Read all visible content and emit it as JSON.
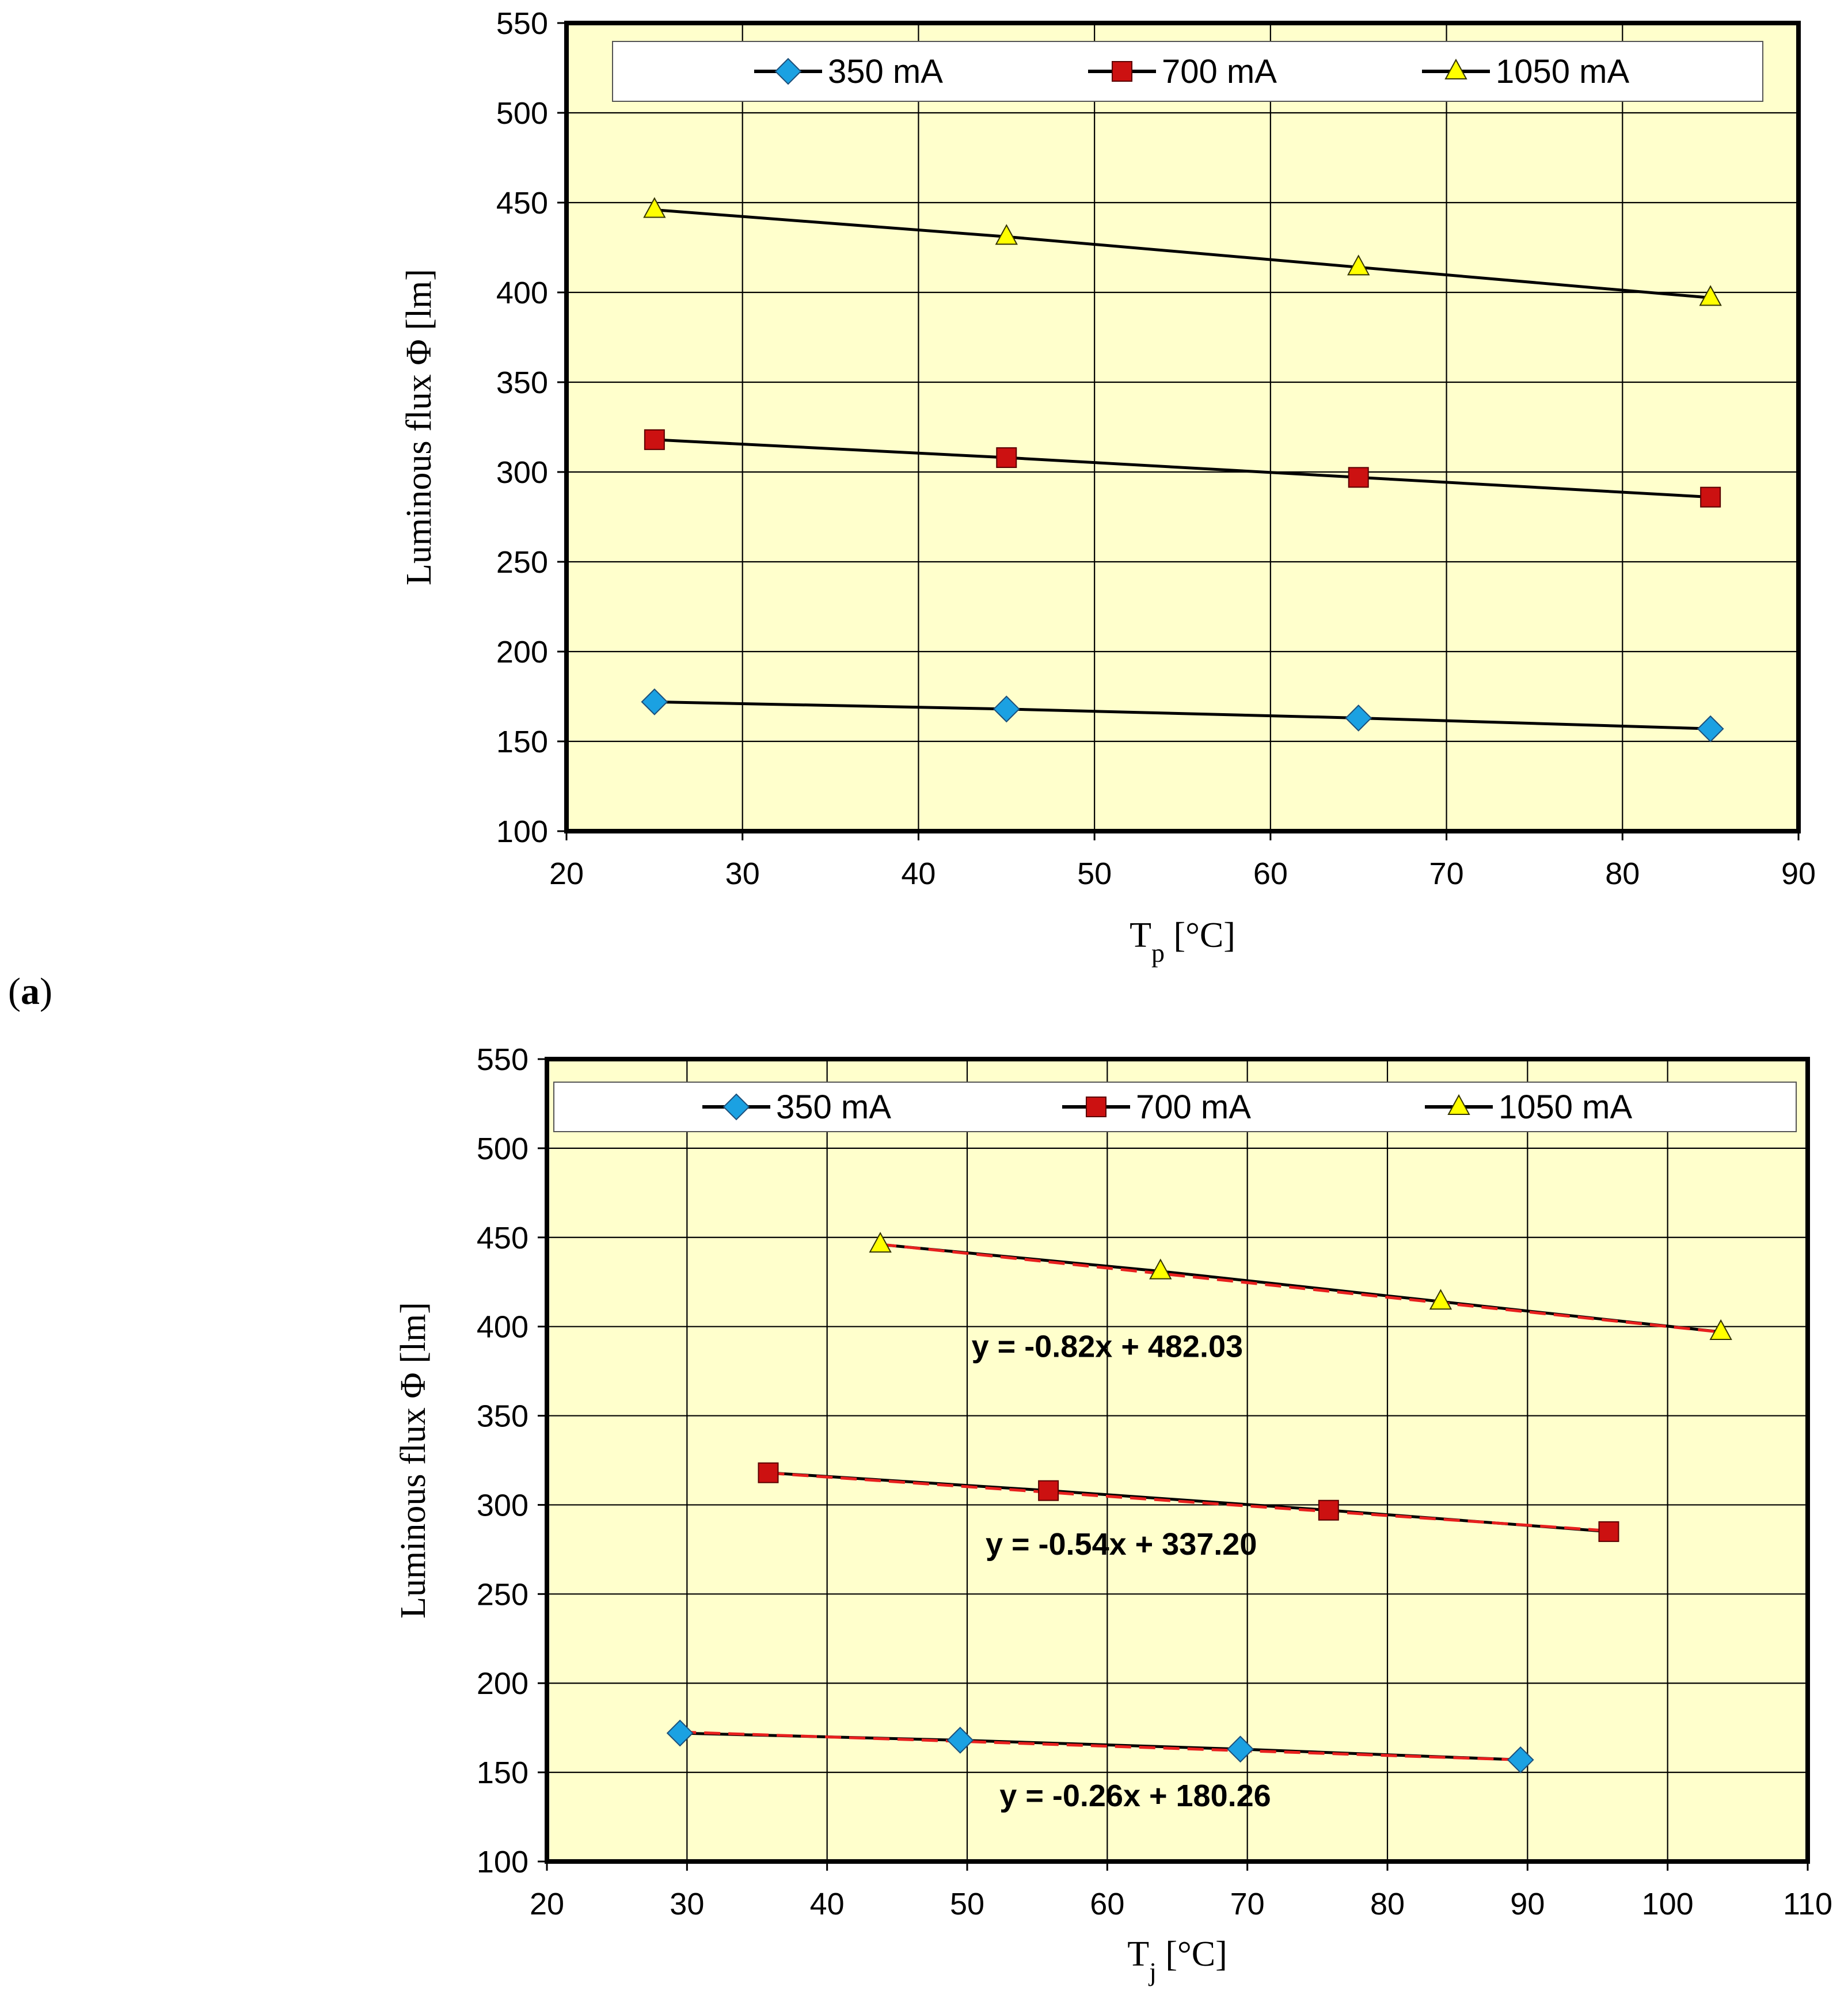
{
  "colors": {
    "plot_bg": "#FFFFCC",
    "grid": "#000000",
    "line": "#000000",
    "trend": "#E8201E",
    "legend_bg": "#FFFFFF"
  },
  "chart_data": [
    {
      "id": "a",
      "panel_label": "a",
      "type": "line",
      "title": "",
      "xlabel": "T",
      "xlabel_sub": "p",
      "xlabel_unit": " [°C]",
      "ylabel": "Luminous flux Φ [lm]",
      "xlim": [
        20,
        90
      ],
      "ylim": [
        100,
        550
      ],
      "xticks": [
        20,
        30,
        40,
        50,
        60,
        70,
        80,
        90
      ],
      "yticks": [
        100,
        150,
        200,
        250,
        300,
        350,
        400,
        450,
        500,
        550
      ],
      "grid": true,
      "legend_position": "top",
      "series": [
        {
          "name": "350 mA",
          "marker": "diamond",
          "color": "#1BA1E2",
          "x": [
            25,
            45,
            65,
            85
          ],
          "y": [
            172,
            168,
            163,
            157
          ]
        },
        {
          "name": "700 mA",
          "marker": "square",
          "color": "#CC1111",
          "x": [
            25,
            45,
            65,
            85
          ],
          "y": [
            318,
            308,
            297,
            286
          ]
        },
        {
          "name": "1050 mA",
          "marker": "triangle",
          "color": "#FFFF00",
          "x": [
            25,
            45,
            65,
            85
          ],
          "y": [
            446,
            431,
            414,
            397
          ]
        }
      ],
      "trendlines": []
    },
    {
      "id": "b",
      "panel_label": "",
      "type": "line",
      "title": "",
      "xlabel": "T",
      "xlabel_sub": "j",
      "xlabel_unit": " [°C]",
      "ylabel": "Luminous flux Φ [lm]",
      "xlim": [
        20,
        110
      ],
      "ylim": [
        100,
        550
      ],
      "xticks": [
        20,
        30,
        40,
        50,
        60,
        70,
        80,
        90,
        100,
        110
      ],
      "yticks": [
        100,
        150,
        200,
        250,
        300,
        350,
        400,
        450,
        500,
        550
      ],
      "grid": true,
      "legend_position": "top",
      "series": [
        {
          "name": "350 mA",
          "marker": "diamond",
          "color": "#1BA1E2",
          "x": [
            29.5,
            49.5,
            69.5,
            89.5
          ],
          "y": [
            172,
            168,
            163,
            157
          ]
        },
        {
          "name": "700 mA",
          "marker": "square",
          "color": "#CC1111",
          "x": [
            35.8,
            55.8,
            75.8,
            95.8
          ],
          "y": [
            318,
            308,
            297,
            285
          ]
        },
        {
          "name": "1050 mA",
          "marker": "triangle",
          "color": "#FFFF00",
          "x": [
            43.8,
            63.8,
            83.8,
            103.8
          ],
          "y": [
            446,
            431,
            414,
            397
          ]
        }
      ],
      "trendlines": [
        {
          "series": "350 mA",
          "slope": -0.26,
          "intercept": 180.26,
          "label": "y = -0.26x + 180.26",
          "label_at": [
            62,
            131
          ]
        },
        {
          "series": "700 mA",
          "slope": -0.54,
          "intercept": 337.2,
          "label": "y = -0.54x + 337.20",
          "label_at": [
            61,
            272
          ]
        },
        {
          "series": "1050 mA",
          "slope": -0.82,
          "intercept": 482.03,
          "label": "y = -0.82x + 482.03",
          "label_at": [
            60,
            383
          ]
        }
      ]
    }
  ]
}
